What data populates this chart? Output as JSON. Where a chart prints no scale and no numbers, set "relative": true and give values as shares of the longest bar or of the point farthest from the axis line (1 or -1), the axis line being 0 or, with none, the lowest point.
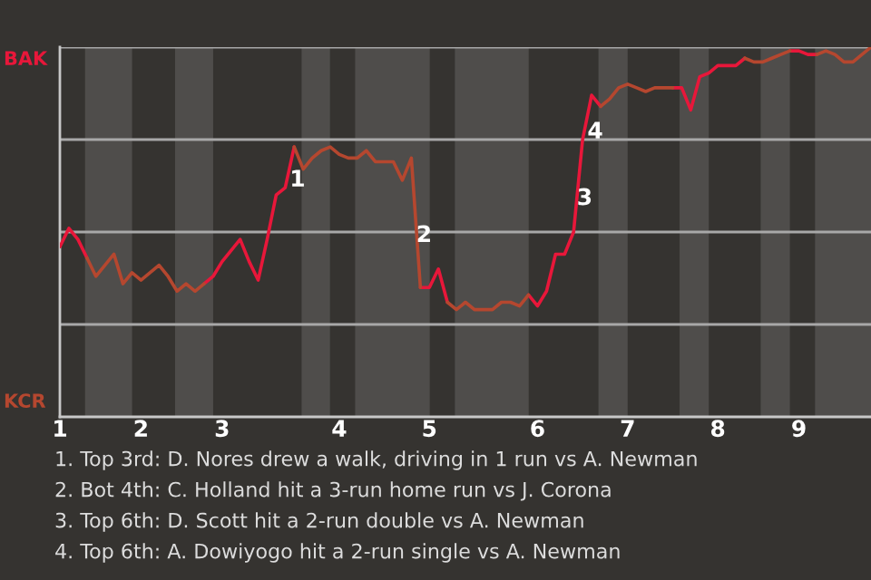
{
  "chart_data": {
    "type": "line",
    "relative": true,
    "categories": [
      "1",
      null,
      null,
      null,
      null,
      null,
      null,
      null,
      null,
      "2",
      null,
      null,
      null,
      null,
      null,
      null,
      null,
      null,
      "3",
      null,
      null,
      null,
      null,
      null,
      null,
      null,
      null,
      null,
      null,
      null,
      null,
      "4",
      null,
      null,
      null,
      null,
      null,
      null,
      null,
      null,
      null,
      "5",
      null,
      null,
      null,
      null,
      null,
      null,
      null,
      null,
      null,
      null,
      null,
      "6",
      null,
      null,
      null,
      null,
      null,
      null,
      null,
      null,
      null,
      "7",
      null,
      null,
      null,
      null,
      null,
      null,
      null,
      null,
      null,
      "8",
      null,
      null,
      null,
      null,
      null,
      null,
      null,
      null,
      "9",
      null,
      null,
      null,
      null,
      null,
      null,
      null,
      null
    ],
    "series": [
      {
        "color": "#e8173a",
        "values": [
          0.46,
          0.51,
          0.48,
          0.43,
          null,
          null,
          null,
          null,
          null,
          null,
          null,
          null,
          null,
          null,
          null,
          null,
          0.36,
          0.38,
          0.42,
          0.45,
          0.48,
          0.42,
          0.37,
          0.48,
          0.6,
          0.62,
          0.73,
          null,
          null,
          null,
          null,
          null,
          null,
          null,
          null,
          null,
          null,
          null,
          null,
          null,
          0.35,
          0.35,
          0.4,
          0.31,
          null,
          null,
          null,
          null,
          null,
          null,
          null,
          null,
          0.33,
          0.3,
          0.34,
          0.44,
          0.44,
          0.5,
          0.75,
          0.87,
          0.84,
          null,
          null,
          null,
          null,
          null,
          null,
          null,
          0.89,
          0.89,
          0.83,
          0.92,
          0.93,
          0.95,
          0.95,
          0.95,
          0.97,
          null,
          null,
          null,
          null,
          0.99,
          0.99,
          0.98,
          0.98,
          null,
          null,
          null,
          null,
          null,
          null
        ]
      },
      {
        "color": "#b5472f",
        "values": [
          null,
          null,
          null,
          0.43,
          0.38,
          0.41,
          0.44,
          0.36,
          0.39,
          0.37,
          0.39,
          0.41,
          0.38,
          0.34,
          0.36,
          0.34,
          0.36,
          null,
          null,
          null,
          null,
          null,
          null,
          null,
          null,
          null,
          0.73,
          0.67,
          0.7,
          0.72,
          0.73,
          0.71,
          0.7,
          0.7,
          0.72,
          0.69,
          0.69,
          0.69,
          0.64,
          0.7,
          0.35,
          null,
          null,
          0.31,
          0.29,
          0.31,
          0.29,
          0.29,
          0.29,
          0.31,
          0.31,
          0.3,
          0.33,
          null,
          null,
          null,
          null,
          null,
          null,
          null,
          0.84,
          0.86,
          0.89,
          0.9,
          0.89,
          0.88,
          0.89,
          0.89,
          0.89,
          null,
          null,
          null,
          null,
          null,
          null,
          null,
          0.97,
          0.96,
          0.96,
          0.97,
          0.98,
          0.99,
          null,
          null,
          0.98,
          0.99,
          0.98,
          0.96,
          0.96,
          0.98,
          1.0
        ]
      }
    ],
    "ref_lines": [
      {
        "axis": "y",
        "value": 0.25,
        "color": "#a8a8a8"
      },
      {
        "axis": "y",
        "value": 0.5,
        "color": "#a8a8a8"
      },
      {
        "axis": "y",
        "value": 0.75,
        "color": "#a8a8a8"
      },
      {
        "axis": "y",
        "value": 1.0,
        "color": "#a8a8a8"
      }
    ],
    "annotations": [
      "BAK",
      "KCR",
      "1",
      "2",
      "3",
      "4",
      "1. Top 3rd: D. Nores drew a walk, driving in 1 run vs A. Newman",
      "2. Bot 4th: C. Holland hit a 3-run home run vs J. Corona",
      "3. Top 6th: D. Scott hit a 2-run double vs A. Newman",
      "4. Top 6th: A. Dowiyogo hit a 2-run single vs A. Newman"
    ]
  }
}
